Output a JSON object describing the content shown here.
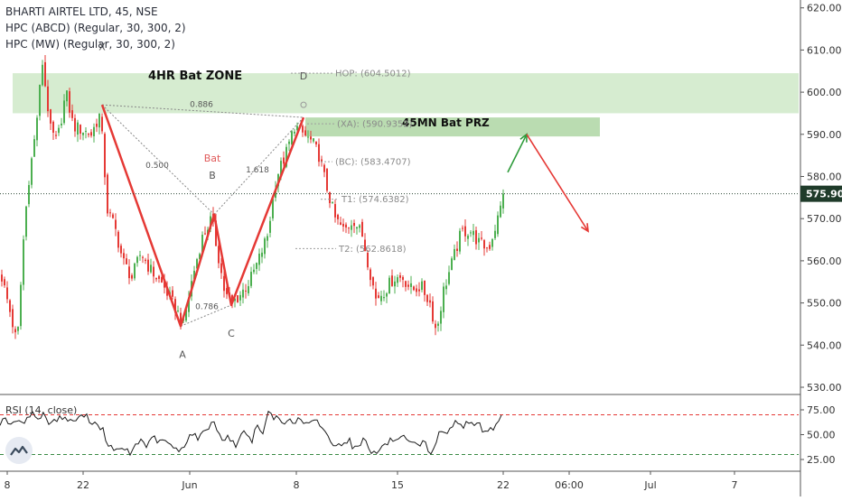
{
  "header": {
    "symbol_line": "BHARTI AIRTEL LTD, 45, NSE",
    "indicator_1": "HPC (ABCD) (Regular, 30, 300, 2)",
    "indicator_2": "HPC (MW) (Regular, 30, 300, 2)"
  },
  "colors": {
    "up": "#4caf50",
    "down": "#e53935",
    "pattern": "#e53935",
    "zone_fill": "#c8e6c0",
    "prz_fill": "#b2d8a8",
    "arrow_up": "#2e9b3a",
    "arrow_down": "#e53935",
    "rsi": "#1a1a1a",
    "rsi_bound": "#e53935",
    "price_tag": "#1f3b2a"
  },
  "chart_data": [
    {
      "type": "candlestick",
      "title": "BHARTI AIRTEL LTD, 45, NSE",
      "ylim": [
        527,
        622
      ],
      "y_ticks": [
        "620.00",
        "610.00",
        "600.00",
        "590.00",
        "580.00",
        "570.00",
        "560.00",
        "550.00",
        "540.00",
        "530.00"
      ],
      "y_tick_values": [
        620,
        610,
        600,
        590,
        580,
        570,
        560,
        550,
        540,
        530
      ],
      "x_ticks": [
        "8",
        "22",
        "Jun",
        "8",
        "15",
        "22",
        "06:00",
        "Jul",
        "7"
      ],
      "x_tick_positions": [
        8,
        92,
        210,
        328,
        440,
        557,
        630,
        720,
        813
      ],
      "last_price": "575.90",
      "last_price_value": 575.9,
      "series": [
        {
          "name": "price",
          "anchors": [
            [
              0,
              557
            ],
            [
              10,
              548
            ],
            [
              18,
              540
            ],
            [
              25,
              565
            ],
            [
              30,
              578
            ],
            [
              38,
              590
            ],
            [
              46,
              607
            ],
            [
              55,
              591
            ],
            [
              62,
              588
            ],
            [
              72,
              600
            ],
            [
              80,
              592
            ],
            [
              90,
              591
            ],
            [
              100,
              590
            ],
            [
              110,
              595
            ],
            [
              118,
              572
            ],
            [
              126,
              568
            ],
            [
              135,
              560
            ],
            [
              145,
              556
            ],
            [
              155,
              562
            ],
            [
              165,
              558
            ],
            [
              180,
              554
            ],
            [
              195,
              548
            ],
            [
              202,
              545
            ],
            [
              212,
              556
            ],
            [
              222,
              565
            ],
            [
              233,
              570
            ],
            [
              240,
              562
            ],
            [
              248,
              552
            ],
            [
              256,
              550
            ],
            [
              265,
              552
            ],
            [
              275,
              555
            ],
            [
              285,
              560
            ],
            [
              295,
              566
            ],
            [
              305,
              580
            ],
            [
              315,
              585
            ],
            [
              325,
              592
            ],
            [
              335,
              590
            ],
            [
              345,
              588
            ],
            [
              352,
              585
            ],
            [
              360,
              578
            ],
            [
              370,
              570
            ],
            [
              380,
              567
            ],
            [
              390,
              570
            ],
            [
              400,
              566
            ],
            [
              408,
              558
            ],
            [
              415,
              551
            ],
            [
              425,
              553
            ],
            [
              435,
              556
            ],
            [
              445,
              556
            ],
            [
              455,
              553
            ],
            [
              465,
              554
            ],
            [
              475,
              550
            ],
            [
              482,
              543
            ],
            [
              490,
              553
            ],
            [
              500,
              560
            ],
            [
              510,
              567
            ],
            [
              520,
              567
            ],
            [
              530,
              564
            ],
            [
              540,
              563
            ],
            [
              550,
              570
            ],
            [
              557,
              576
            ]
          ]
        }
      ],
      "zones": [
        {
          "label": "4HR Bat ZONE",
          "y0": 595,
          "y1": 604.5
        },
        {
          "label": "45MN Bat PRZ",
          "y0": 589.5,
          "y1": 594
        }
      ],
      "pattern_points": [
        {
          "label": "X",
          "x": 113,
          "y": 597
        },
        {
          "label": "A",
          "x": 200,
          "y": 544.5
        },
        {
          "label": "B",
          "x": 237,
          "y": 571
        },
        {
          "label": "C",
          "x": 256,
          "y": 549.5
        },
        {
          "label": "D",
          "x": 336,
          "y": 594
        }
      ],
      "pattern_point_labels": [
        {
          "text": "X",
          "x": 113,
          "y": 610
        },
        {
          "text": "A",
          "x": 202,
          "y": 537
        },
        {
          "text": "B",
          "x": 235,
          "y": 579.5
        },
        {
          "text": "C",
          "x": 256,
          "y": 542
        },
        {
          "text": "D",
          "x": 336,
          "y": 603
        }
      ],
      "ratio_labels": [
        {
          "text": "0.886",
          "x": 223,
          "y": 596.5
        },
        {
          "text": "0.500",
          "x": 174,
          "y": 582
        },
        {
          "text": "1.618",
          "x": 285,
          "y": 581
        },
        {
          "text": "0.786",
          "x": 229,
          "y": 548.5
        },
        {
          "text": "Bat",
          "x": 235,
          "y": 583.5
        }
      ],
      "levels": [
        {
          "label": "HOP: (604.5012)",
          "y": 604.5,
          "x0": 322,
          "x1": 368
        },
        {
          "label": "(XA): (590.9352)",
          "y": 592.5,
          "x0": 340,
          "x1": 370
        },
        {
          "label": "(BC): (583.4707)",
          "y": 583.5,
          "x0": 355,
          "x1": 368
        },
        {
          "label": "T1: (574.6382)",
          "y": 574.6,
          "x0": 355,
          "x1": 375
        },
        {
          "label": "T2: (562.8618)",
          "y": 562.9,
          "x0": 327,
          "x1": 372
        }
      ],
      "projections": [
        {
          "direction": "up",
          "x0": 562,
          "y0": 581,
          "x1": 583,
          "y1": 590
        },
        {
          "direction": "down",
          "x0": 583,
          "y0": 590,
          "x1": 651,
          "y1": 567
        }
      ]
    },
    {
      "type": "line",
      "title": "RSI (14, close)",
      "ylim": [
        22,
        78
      ],
      "y_ticks": [
        "75.00",
        "50.00",
        "25.00"
      ],
      "y_tick_values": [
        75,
        50,
        25
      ],
      "upper_bound": 70,
      "lower_bound": 30,
      "series": [
        {
          "name": "RSI",
          "anchors": [
            [
              0,
              62
            ],
            [
              6,
              68
            ],
            [
              12,
              58
            ],
            [
              18,
              65
            ],
            [
              24,
              60
            ],
            [
              30,
              68
            ],
            [
              35,
              72
            ],
            [
              42,
              66
            ],
            [
              48,
              70
            ],
            [
              55,
              62
            ],
            [
              62,
              65
            ],
            [
              70,
              68
            ],
            [
              78,
              63
            ],
            [
              86,
              66
            ],
            [
              94,
              70
            ],
            [
              100,
              64
            ],
            [
              108,
              60
            ],
            [
              115,
              55
            ],
            [
              118,
              35
            ],
            [
              124,
              38
            ],
            [
              130,
              33
            ],
            [
              138,
              36
            ],
            [
              144,
              30
            ],
            [
              150,
              40
            ],
            [
              157,
              45
            ],
            [
              163,
              38
            ],
            [
              170,
              48
            ],
            [
              176,
              42
            ],
            [
              184,
              44
            ],
            [
              192,
              36
            ],
            [
              198,
              33
            ],
            [
              204,
              40
            ],
            [
              212,
              52
            ],
            [
              220,
              46
            ],
            [
              228,
              55
            ],
            [
              236,
              64
            ],
            [
              242,
              52
            ],
            [
              248,
              44
            ],
            [
              254,
              48
            ],
            [
              260,
              38
            ],
            [
              266,
              48
            ],
            [
              272,
              55
            ],
            [
              278,
              42
            ],
            [
              284,
              58
            ],
            [
              290,
              50
            ],
            [
              298,
              74
            ],
            [
              303,
              66
            ],
            [
              308,
              68
            ],
            [
              313,
              62
            ],
            [
              318,
              66
            ],
            [
              324,
              60
            ],
            [
              330,
              66
            ],
            [
              336,
              62
            ],
            [
              342,
              60
            ],
            [
              350,
              64
            ],
            [
              356,
              58
            ],
            [
              362,
              52
            ],
            [
              368,
              36
            ],
            [
              374,
              44
            ],
            [
              380,
              40
            ],
            [
              386,
              46
            ],
            [
              392,
              35
            ],
            [
              398,
              40
            ],
            [
              404,
              48
            ],
            [
              410,
              34
            ],
            [
              416,
              30
            ],
            [
              422,
              38
            ],
            [
              428,
              40
            ],
            [
              434,
              46
            ],
            [
              440,
              42
            ],
            [
              446,
              48
            ],
            [
              452,
              40
            ],
            [
              458,
              42
            ],
            [
              464,
              36
            ],
            [
              470,
              44
            ],
            [
              476,
              30
            ],
            [
              482,
              40
            ],
            [
              488,
              56
            ],
            [
              494,
              48
            ],
            [
              500,
              60
            ],
            [
              506,
              63
            ],
            [
              512,
              58
            ],
            [
              518,
              66
            ],
            [
              524,
              56
            ],
            [
              530,
              62
            ],
            [
              536,
              52
            ],
            [
              542,
              55
            ],
            [
              548,
              58
            ],
            [
              552,
              66
            ],
            [
              557,
              70
            ]
          ]
        }
      ]
    }
  ]
}
